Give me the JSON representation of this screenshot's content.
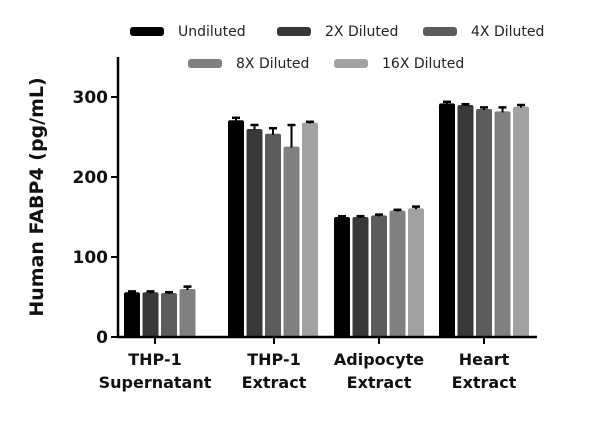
{
  "chart_data": {
    "type": "bar",
    "title": "",
    "xlabel": "",
    "ylabel": "Human FABP4 (pg/mL)",
    "ylim": [
      0,
      350
    ],
    "yticks": [
      0,
      100,
      200,
      300
    ],
    "grid": false,
    "legend_position": "top",
    "categories": [
      [
        "THP-1",
        "Supernatant"
      ],
      [
        "THP-1",
        "Extract"
      ],
      [
        "Adipocyte",
        "Extract"
      ],
      [
        "Heart",
        "Extract"
      ]
    ],
    "category_names": [
      "THP-1 Supernatant",
      "THP-1 Extract",
      "Adipocyte Extract",
      "Heart Extract"
    ],
    "series": [
      {
        "name": "Undiluted",
        "color": "#000000",
        "values": [
          56,
          271,
          150,
          292
        ],
        "errors": [
          1,
          3,
          1,
          2
        ]
      },
      {
        "name": "2X Diluted",
        "color": "#383838",
        "values": [
          56,
          260,
          150,
          290
        ],
        "errors": [
          1,
          5,
          1,
          1
        ]
      },
      {
        "name": "4X Diluted",
        "color": "#5c5c5c",
        "values": [
          55,
          254,
          152,
          285
        ],
        "errors": [
          1,
          7,
          1,
          2
        ]
      },
      {
        "name": "8X Diluted",
        "color": "#808080",
        "values": [
          60,
          238,
          158,
          282
        ],
        "errors": [
          3,
          27,
          1,
          5
        ]
      },
      {
        "name": "16X Diluted",
        "color": "#a2a2a2",
        "values": [
          null,
          268,
          161,
          288
        ],
        "errors": [
          null,
          1,
          2,
          2
        ]
      }
    ]
  },
  "legend": {
    "items": [
      {
        "label": "Undiluted"
      },
      {
        "label": "2X Diluted"
      },
      {
        "label": "4X Diluted"
      },
      {
        "label": "8X Diluted"
      },
      {
        "label": "16X Diluted"
      }
    ]
  }
}
